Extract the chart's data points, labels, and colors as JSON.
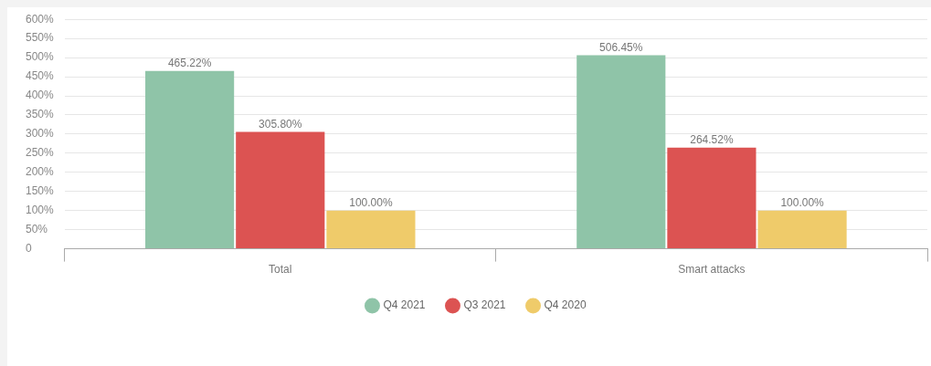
{
  "chart_data": {
    "type": "bar",
    "categories": [
      "Total",
      "Smart attacks"
    ],
    "series": [
      {
        "name": "Q4 2021",
        "color": "#8fc4a8",
        "values": [
          465.22,
          506.45
        ],
        "value_labels": [
          "465.22%",
          "506.45%"
        ]
      },
      {
        "name": "Q3 2021",
        "color": "#dc5352",
        "values": [
          305.8,
          264.52
        ],
        "value_labels": [
          "305.80%",
          "264.52%"
        ]
      },
      {
        "name": "Q4 2020",
        "color": "#efcb6a",
        "values": [
          100,
          100
        ],
        "value_labels": [
          "100.00%",
          "100.00%"
        ]
      }
    ],
    "ylim": [
      0,
      600
    ],
    "yticks": [
      0,
      {
        "value": 50,
        "label": "50%"
      },
      {
        "value": 100,
        "label": "100%"
      },
      {
        "value": 150,
        "label": "150%"
      },
      {
        "value": 200,
        "label": "200%"
      },
      {
        "value": 250,
        "label": "250%"
      },
      {
        "value": 300,
        "label": "300%"
      },
      {
        "value": 350,
        "label": "350%"
      },
      {
        "value": 400,
        "label": "400%"
      },
      {
        "value": 450,
        "label": "450%"
      },
      {
        "value": 500,
        "label": "500%"
      },
      {
        "value": 550,
        "label": "550%"
      },
      {
        "value": 600,
        "label": "600%"
      }
    ],
    "grid": "y",
    "legend": "bottom",
    "marker": "circle"
  }
}
